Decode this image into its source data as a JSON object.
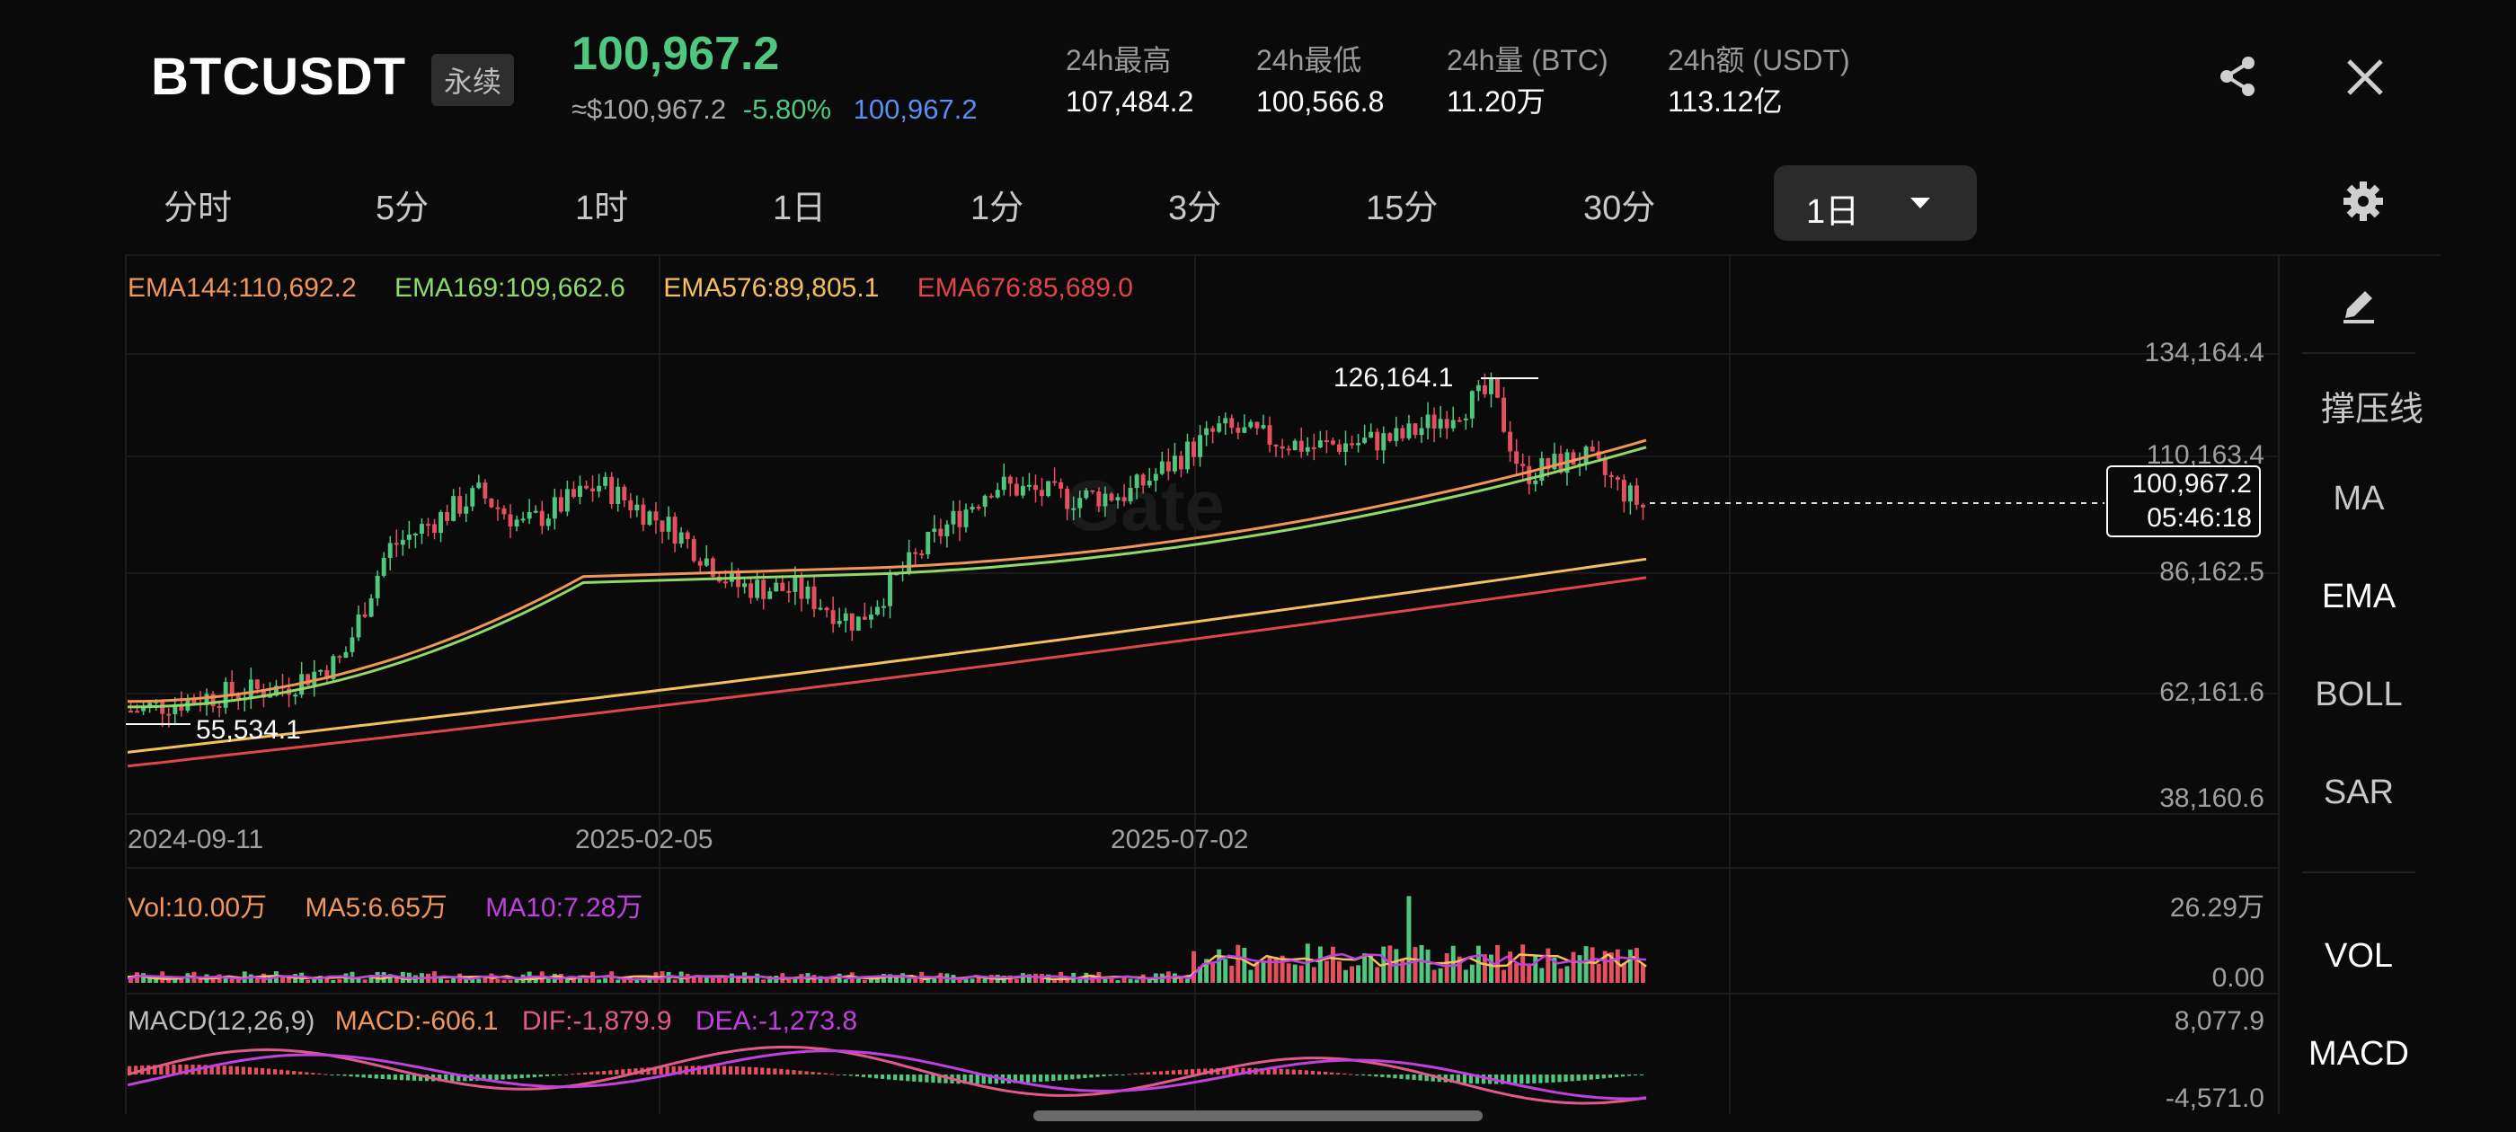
{
  "header": {
    "symbol": "BTCUSDT",
    "contract_tag": "永续",
    "last_price": "100,967.2",
    "approx_usd": "≈$100,967.2",
    "change_pct": "-5.80%",
    "mark_price": "100,967.2",
    "stats": [
      {
        "label": "24h最高",
        "value": "107,484.2"
      },
      {
        "label": "24h最低",
        "value": "100,566.8"
      },
      {
        "label": "24h量 (BTC)",
        "value": "11.20万"
      },
      {
        "label": "24h额 (USDT)",
        "value": "113.12亿"
      }
    ],
    "share_icon": "share-icon",
    "close_icon": "close-icon"
  },
  "tabs": [
    "分时",
    "5分",
    "1时",
    "1日",
    "1分",
    "3分",
    "15分",
    "30分"
  ],
  "active_interval": "1日",
  "settings_icon": "gear-icon",
  "right_panel": {
    "draw_icon": "pencil-icon",
    "items": [
      "撑压线",
      "MA",
      "EMA",
      "BOLL",
      "SAR"
    ],
    "active_item": "EMA",
    "sub_items": [
      "VOL",
      "MACD"
    ]
  },
  "colors": {
    "up": "#4fc77f",
    "down": "#e4505e",
    "ema144": "#f0965a",
    "ema169": "#8fd86a",
    "ema576": "#f5c05c",
    "ema676": "#e0454a",
    "mark_blue": "#5b8ef0",
    "macd_purple": "#c040e0",
    "dif_pink": "#e05a8c"
  },
  "chart_data": {
    "type": "candlestick",
    "ema_legend": [
      {
        "text": "EMA144:110,692.2",
        "color": "#f0965a"
      },
      {
        "text": "EMA169:109,662.6",
        "color": "#8fd86a"
      },
      {
        "text": "EMA576:89,805.1",
        "color": "#f5c05c"
      },
      {
        "text": "EMA676:85,689.0",
        "color": "#e0454a"
      }
    ],
    "y_ticks": [
      "134,164.4",
      "110,163.4",
      "86,162.5",
      "62,161.6",
      "38,160.6"
    ],
    "x_ticks": [
      "2024-09-11",
      "2025-02-05",
      "2025-07-02"
    ],
    "high_label": "126,164.1",
    "low_label": "55,534.1",
    "current_price_label": "100,967.2",
    "countdown_label": "05:46:18",
    "watermark": "Gate",
    "volume": {
      "legend": [
        {
          "text": "Vol:10.00万",
          "color": "#f0965a"
        },
        {
          "text": "MA5:6.65万",
          "color": "#f0965a"
        },
        {
          "text": "MA10:7.28万",
          "color": "#c040e0"
        }
      ],
      "y_ticks": [
        "26.29万",
        "0.00"
      ]
    },
    "macd": {
      "legend": [
        {
          "text": "MACD(12,26,9)",
          "color": "#bdbdbd"
        },
        {
          "text": "MACD:-606.1",
          "color": "#f0965a"
        },
        {
          "text": "DIF:-1,879.9",
          "color": "#e05a8c"
        },
        {
          "text": "DEA:-1,273.8",
          "color": "#c040e0"
        }
      ],
      "y_ticks": [
        "8,077.9",
        "-4,571.0"
      ]
    }
  }
}
